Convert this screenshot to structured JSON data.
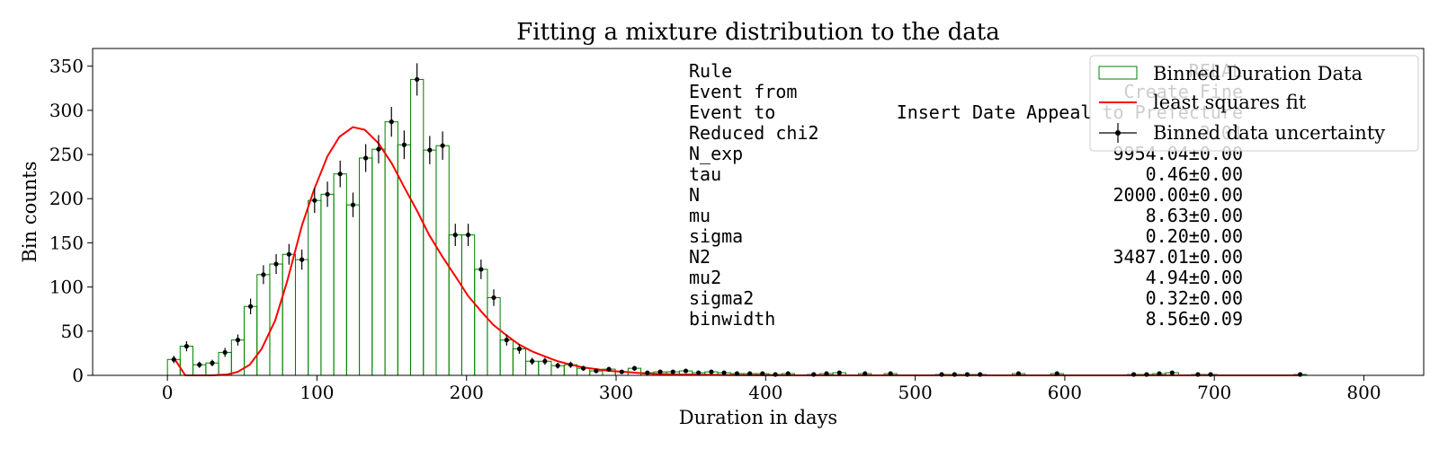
{
  "chart_data": {
    "type": "bar",
    "title": "Fitting a mixture distribution to the data",
    "xlabel": "Duration in days",
    "ylabel": "Bin counts",
    "xlim": [
      -50,
      840
    ],
    "ylim": [
      0,
      370
    ],
    "xticks": [
      0,
      100,
      200,
      300,
      400,
      500,
      600,
      700,
      800
    ],
    "yticks": [
      0,
      50,
      100,
      150,
      200,
      250,
      300,
      350
    ],
    "grid": false,
    "legend_position": "top-right",
    "binwidth": 8.56,
    "histogram": {
      "name": "Binned Duration Data",
      "color": "#008000",
      "bin_centers": [
        4.3,
        12.8,
        21.4,
        30.0,
        38.5,
        47.1,
        55.6,
        64.2,
        72.7,
        81.3,
        89.9,
        98.4,
        107.0,
        115.5,
        124.1,
        132.6,
        141.2,
        149.8,
        158.3,
        166.9,
        175.4,
        184.0,
        192.5,
        201.1,
        209.7,
        218.2,
        226.8,
        235.3,
        243.9,
        252.4,
        261.0,
        269.6,
        278.1,
        286.7,
        295.2,
        303.8,
        312.3,
        320.9,
        329.5,
        338.0,
        346.6,
        355.1,
        363.7,
        372.2,
        380.8,
        389.4,
        397.9,
        406.5,
        415.0,
        432.1,
        440.7,
        449.3,
        466.4,
        483.5,
        517.7,
        526.3,
        534.8,
        543.4,
        569.1,
        594.8,
        646.1,
        654.7,
        663.2,
        671.8,
        689.0,
        697.5,
        757.4
      ],
      "values": [
        18,
        33,
        12,
        14,
        26,
        40,
        78,
        114,
        126,
        137,
        131,
        198,
        205,
        228,
        193,
        246,
        256,
        287,
        261,
        335,
        255,
        260,
        159,
        159,
        120,
        88,
        40,
        30,
        16,
        16,
        11,
        12,
        8,
        5,
        7,
        4,
        8,
        3,
        4,
        4,
        5,
        3,
        4,
        3,
        2,
        2,
        2,
        1,
        2,
        1,
        2,
        3,
        2,
        2,
        1,
        1,
        1,
        1,
        2,
        2,
        1,
        1,
        2,
        3,
        1,
        1,
        1
      ],
      "errors": [
        4.2,
        5.7,
        3.5,
        3.7,
        5.1,
        6.3,
        8.8,
        10.7,
        11.2,
        11.7,
        11.4,
        14.1,
        14.3,
        15.1,
        13.9,
        15.7,
        16.0,
        16.9,
        16.2,
        18.3,
        16.0,
        16.1,
        12.6,
        12.6,
        11.0,
        9.4,
        6.3,
        5.5,
        4.0,
        4.0,
        3.3,
        3.5,
        2.8,
        2.2,
        2.6,
        2.0,
        2.8,
        1.7,
        2.0,
        2.0,
        2.2,
        1.7,
        2.0,
        1.7,
        1.4,
        1.4,
        1.4,
        1.0,
        1.4,
        1.0,
        1.4,
        1.7,
        1.4,
        1.4,
        1.0,
        1.0,
        1.0,
        1.0,
        1.4,
        1.4,
        1.0,
        1.0,
        1.4,
        1.7,
        1.0,
        1.0,
        1.0
      ]
    },
    "errorbars": {
      "name": "Binned data uncertainty",
      "color": "#000000"
    },
    "fit": {
      "name": "least squares fit",
      "color": "#ff0000",
      "x": [
        5,
        12,
        20,
        30,
        40,
        47,
        55,
        63,
        72,
        80,
        90,
        98,
        107,
        115,
        124,
        132,
        141,
        150,
        158,
        167,
        175,
        184,
        193,
        201,
        210,
        218,
        227,
        235,
        244,
        253,
        261,
        270,
        278,
        287,
        296,
        305,
        320,
        340,
        360,
        380,
        400,
        450,
        500,
        550,
        600,
        650,
        700,
        757
      ],
      "y": [
        18,
        0,
        0,
        0,
        1,
        4,
        12,
        30,
        62,
        106,
        170,
        210,
        248,
        270,
        281,
        278,
        263,
        240,
        214,
        186,
        159,
        134,
        111,
        90,
        72,
        57,
        45,
        35,
        27,
        21,
        16,
        12,
        9,
        7,
        5,
        4,
        2,
        1,
        0.6,
        0.3,
        0.1,
        0,
        0,
        0,
        0,
        0,
        0,
        0
      ]
    }
  },
  "stats_box": {
    "rows": [
      {
        "label": "Rule",
        "value": "RELAL"
      },
      {
        "label": "Event from",
        "value": "Create Fine"
      },
      {
        "label": "Event to",
        "value": "Insert Date Appeal to Prefecture"
      },
      {
        "label": "Reduced chi2",
        "value": "2.01"
      },
      {
        "label": "N_exp",
        "value": "9954.04±0.00"
      },
      {
        "label": "tau",
        "value": "0.46±0.00"
      },
      {
        "label": "N",
        "value": "2000.00±0.00"
      },
      {
        "label": "mu",
        "value": "8.63±0.00"
      },
      {
        "label": "sigma",
        "value": "0.20±0.00"
      },
      {
        "label": "N2",
        "value": "3487.01±0.00"
      },
      {
        "label": "mu2",
        "value": "4.94±0.00"
      },
      {
        "label": "sigma2",
        "value": "0.32±0.00"
      },
      {
        "label": "binwidth",
        "value": "8.56±0.09"
      }
    ]
  }
}
